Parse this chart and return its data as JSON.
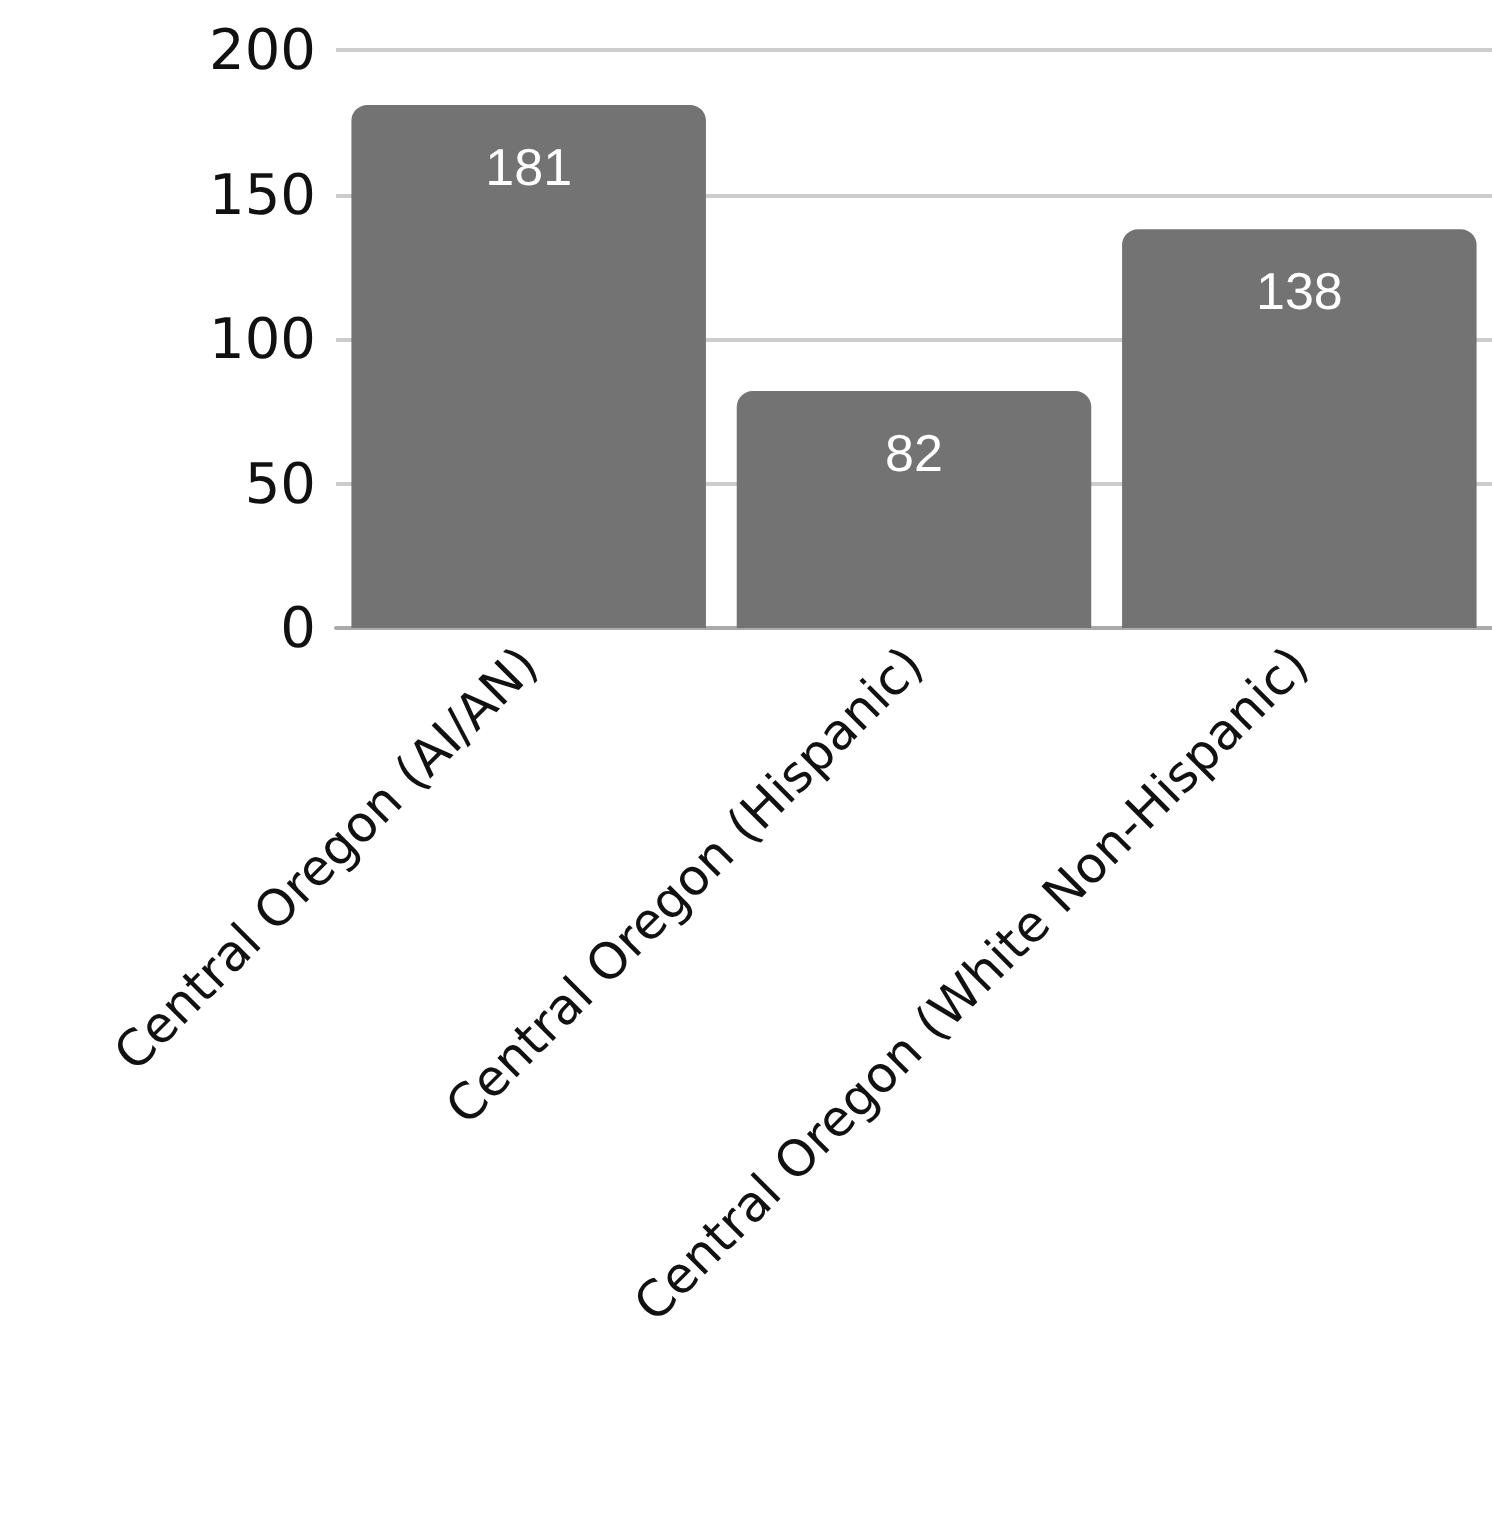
{
  "chart_data": {
    "type": "bar",
    "categories": [
      "Central Oregon (AI/AN)",
      "Central Oregon (Hispanic)",
      "Central Oregon (White Non-Hispanic)"
    ],
    "values": [
      181,
      82,
      138
    ],
    "color": "#737373",
    "ylim": [
      0,
      200
    ],
    "yticks": [
      0,
      50,
      100,
      150,
      200
    ],
    "grid": "y",
    "data_labels": true
  }
}
